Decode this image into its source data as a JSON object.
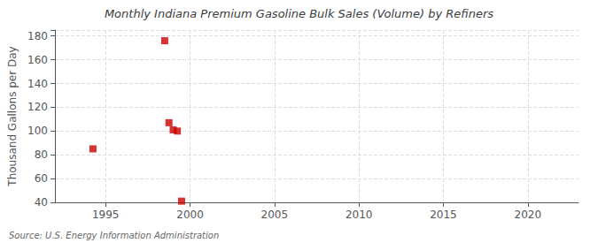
{
  "chart_data": {
    "type": "scatter",
    "title": "Monthly Indiana Premium Gasoline Bulk Sales (Volume) by Refiners",
    "ylabel": "Thousand Gallons per Day",
    "annotations": [
      "Source: U.S. Energy Information Administration"
    ],
    "x": [
      1994.25,
      1998.5,
      1998.75,
      1999.0,
      1999.25,
      1999.5
    ],
    "values": [
      85,
      176,
      107,
      101,
      100,
      41
    ],
    "color": "#cc0000",
    "marker": "square",
    "xlim": [
      1992,
      2023
    ],
    "ylim": [
      40,
      185
    ],
    "xticks": [
      1995,
      2000,
      2005,
      2010,
      2015,
      2020
    ],
    "yticks": [
      40,
      60,
      80,
      100,
      120,
      140,
      160,
      180
    ],
    "grid": true
  }
}
